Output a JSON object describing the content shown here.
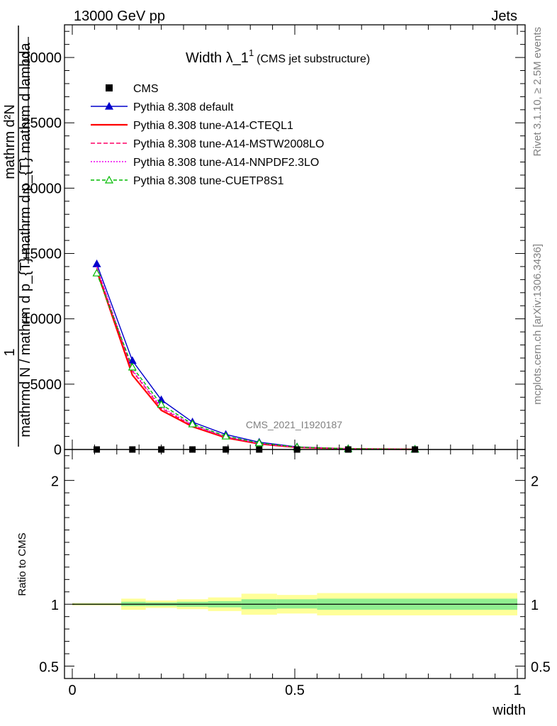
{
  "header": {
    "left": "13000 GeV pp",
    "right": "Jets"
  },
  "side_labels": {
    "rivet": "Rivet 3.1.10, ≥ 2.5M events",
    "mcplots": "mcplots.cern.ch [arXiv:1306.3436]"
  },
  "watermark": "CMS_2021_I1920187",
  "chart_data": [
    {
      "type": "line",
      "title_main": "Width λ_1",
      "title_sup": "1",
      "title_sub": "(CMS jet substructure)",
      "ylabel_parts": {
        "one": "1",
        "denominator": "mathrmd N / mathrm d p_{T}",
        "numerator_top": "mathrm d²N",
        "numerator_bottom": "mathrm d p_{T} mathrm d lambda",
        "sup2": "2",
        "subT": "T",
        "overlap1": "mathrm d p",
        "overlap2": "mathrm d p"
      },
      "xlim": [
        0,
        1
      ],
      "ylim": [
        0,
        32500
      ],
      "yticks": [
        0,
        5000,
        10000,
        15000,
        20000,
        25000,
        30000
      ],
      "ytick_labels": [
        "0",
        "5000",
        "10000",
        "15000",
        "20000",
        "25000",
        "30000"
      ],
      "x": [
        0.055,
        0.135,
        0.2,
        0.27,
        0.345,
        0.42,
        0.505,
        0.62,
        0.77
      ],
      "data": {
        "name": "CMS",
        "y": [
          0,
          0,
          0,
          0,
          0,
          0,
          0,
          0,
          0
        ],
        "color": "#000000"
      },
      "series": [
        {
          "name": "Pythia 8.308 default",
          "color": "#0000cc",
          "dash": "",
          "marker": "triangle-filled",
          "y": [
            14200,
            6800,
            3800,
            2100,
            1150,
            560,
            200,
            60,
            20
          ]
        },
        {
          "name": "Pythia 8.308 tune-A14-CTEQL1",
          "color": "#ff0000",
          "dash": "",
          "marker": "",
          "y": [
            13700,
            5700,
            3000,
            1750,
            900,
            430,
            160,
            50,
            15
          ]
        },
        {
          "name": "Pythia 8.308 tune-A14-MSTW2008LO",
          "color": "#ff0066",
          "dash": "6,3",
          "marker": "",
          "y": [
            13900,
            6000,
            3150,
            1820,
            950,
            450,
            170,
            52,
            16
          ]
        },
        {
          "name": "Pythia 8.308 tune-A14-NNPDF2.3LO",
          "color": "#ee00ee",
          "dash": "2,2",
          "marker": "",
          "y": [
            14000,
            6100,
            3250,
            1880,
            980,
            470,
            175,
            54,
            17
          ]
        },
        {
          "name": "Pythia 8.308 tune-CUETP8S1",
          "color": "#00bb00",
          "dash": "5,3",
          "marker": "triangle-open",
          "y": [
            13500,
            6300,
            3450,
            1950,
            1020,
            500,
            185,
            56,
            18
          ]
        }
      ]
    },
    {
      "type": "area",
      "ylabel": "Ratio to CMS",
      "xlabel": "width",
      "xlim": [
        0,
        1
      ],
      "ylim": [
        0.4,
        2.25
      ],
      "yticks": [
        0.5,
        1,
        2
      ],
      "ytick_labels": [
        "0.5",
        "1",
        "2"
      ],
      "xticks": [
        0,
        0.5,
        1
      ],
      "xtick_labels": [
        "0",
        "0.5",
        "1"
      ],
      "band_colors": {
        "stat": "#90ee90",
        "total": "#ffff99"
      },
      "bins": [
        {
          "x0": 0.0,
          "x1": 0.11,
          "stat": [
            0.995,
            1.005
          ],
          "total": [
            0.99,
            1.01
          ]
        },
        {
          "x0": 0.11,
          "x1": 0.165,
          "stat": [
            0.985,
            1.02
          ],
          "total": [
            0.955,
            1.045
          ]
        },
        {
          "x0": 0.165,
          "x1": 0.235,
          "stat": [
            0.985,
            1.015
          ],
          "total": [
            0.97,
            1.03
          ]
        },
        {
          "x0": 0.235,
          "x1": 0.305,
          "stat": [
            0.98,
            1.02
          ],
          "total": [
            0.96,
            1.04
          ]
        },
        {
          "x0": 0.305,
          "x1": 0.38,
          "stat": [
            0.975,
            1.025
          ],
          "total": [
            0.945,
            1.055
          ]
        },
        {
          "x0": 0.38,
          "x1": 0.46,
          "stat": [
            0.96,
            1.04
          ],
          "total": [
            0.915,
            1.085
          ]
        },
        {
          "x0": 0.46,
          "x1": 0.55,
          "stat": [
            0.965,
            1.04
          ],
          "total": [
            0.925,
            1.075
          ]
        },
        {
          "x0": 0.55,
          "x1": 1.0,
          "stat": [
            0.955,
            1.045
          ],
          "total": [
            0.91,
            1.09
          ]
        }
      ]
    }
  ]
}
